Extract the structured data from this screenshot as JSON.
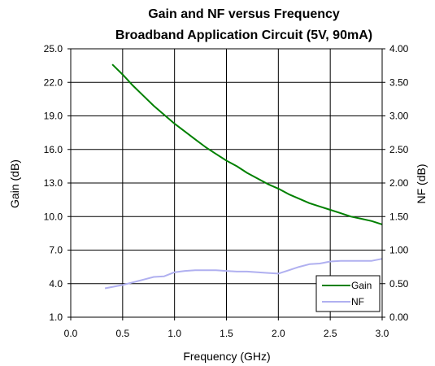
{
  "chart_data": {
    "type": "line",
    "title": "Gain and NF versus Frequency",
    "subtitle": "Broadband Application Circuit (5V, 90mA)",
    "xlabel": "Frequency (GHz)",
    "ylabel_left": "Gain (dB)",
    "ylabel_right": "NF (dB)",
    "xlim": [
      0.0,
      3.0
    ],
    "ylim_left": [
      1.0,
      25.0
    ],
    "ylim_right": [
      0.0,
      4.0
    ],
    "x_ticks": [
      "0.0",
      "0.5",
      "1.0",
      "1.5",
      "2.0",
      "2.5",
      "3.0"
    ],
    "y_left_ticks": [
      "1.0",
      "4.0",
      "7.0",
      "10.0",
      "13.0",
      "16.0",
      "19.0",
      "22.0",
      "25.0"
    ],
    "y_right_ticks": [
      "0.00",
      "0.50",
      "1.00",
      "1.50",
      "2.00",
      "2.50",
      "3.00",
      "3.50",
      "4.00"
    ],
    "grid": true,
    "legend_position": "bottom-right",
    "series": [
      {
        "name": "Gain",
        "axis": "left",
        "color": "#008000",
        "x": [
          0.4,
          0.5,
          0.6,
          0.7,
          0.8,
          0.9,
          1.0,
          1.1,
          1.2,
          1.3,
          1.4,
          1.5,
          1.6,
          1.7,
          1.8,
          1.9,
          2.0,
          2.1,
          2.2,
          2.3,
          2.4,
          2.5,
          2.6,
          2.7,
          2.8,
          2.9,
          3.0
        ],
        "values": [
          23.6,
          22.7,
          21.7,
          20.8,
          19.9,
          19.1,
          18.3,
          17.6,
          16.9,
          16.2,
          15.6,
          15.0,
          14.5,
          13.9,
          13.4,
          12.9,
          12.5,
          12.0,
          11.6,
          11.2,
          10.9,
          10.6,
          10.3,
          10.0,
          9.8,
          9.6,
          9.3
        ]
      },
      {
        "name": "NF",
        "axis": "right",
        "color": "#b0b0f0",
        "x": [
          0.33,
          0.5,
          0.6,
          0.7,
          0.8,
          0.9,
          1.0,
          1.1,
          1.2,
          1.3,
          1.4,
          1.5,
          1.6,
          1.7,
          1.8,
          1.9,
          2.0,
          2.1,
          2.2,
          2.3,
          2.4,
          2.5,
          2.6,
          2.7,
          2.8,
          2.9,
          3.0
        ],
        "values": [
          0.43,
          0.48,
          0.52,
          0.56,
          0.6,
          0.61,
          0.67,
          0.69,
          0.7,
          0.7,
          0.7,
          0.69,
          0.68,
          0.68,
          0.67,
          0.66,
          0.65,
          0.7,
          0.75,
          0.79,
          0.8,
          0.83,
          0.84,
          0.84,
          0.84,
          0.84,
          0.87
        ]
      }
    ]
  }
}
